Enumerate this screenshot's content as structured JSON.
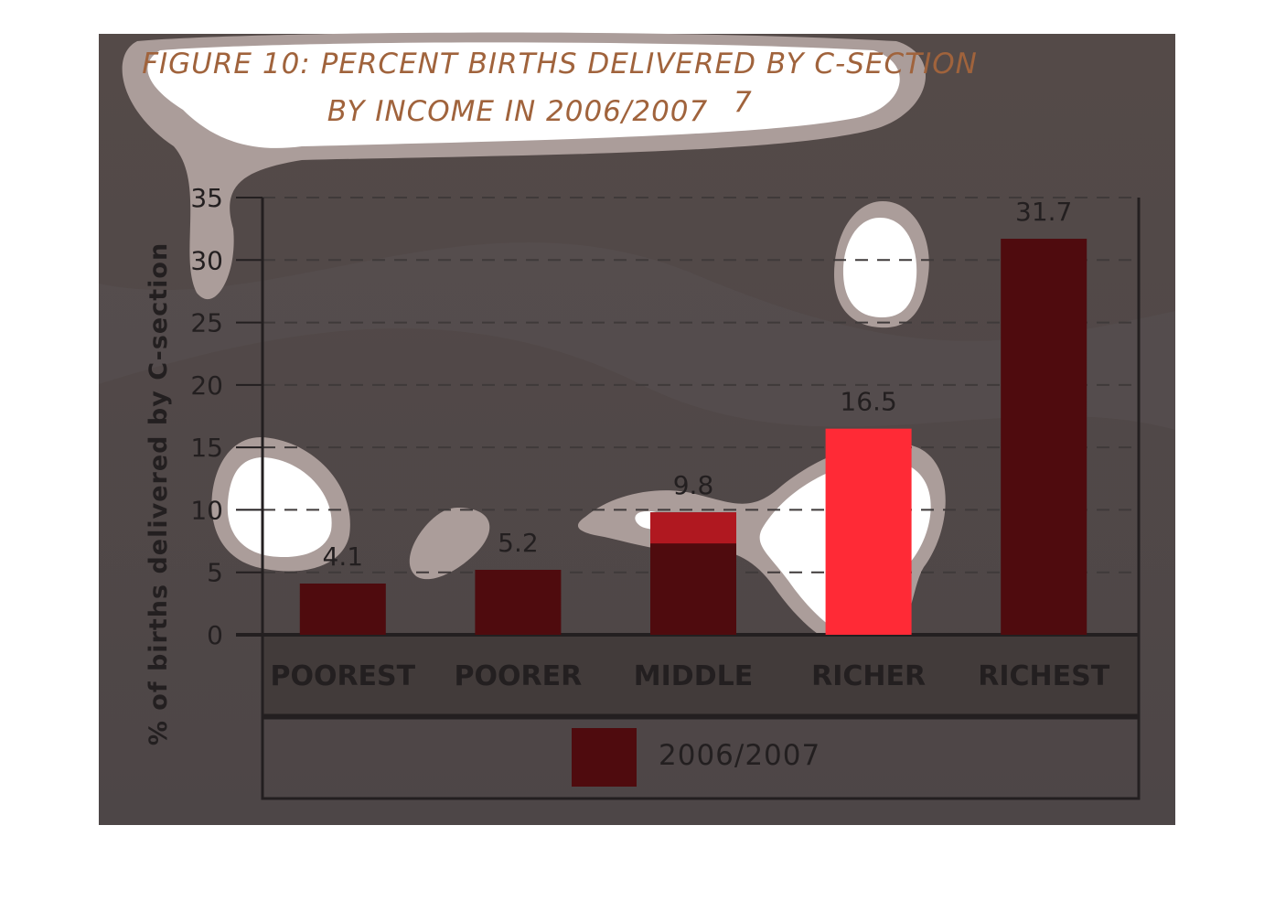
{
  "title": {
    "line1": "FIGURE 10: PERCENT BIRTHS DELIVERED BY C-SECTION",
    "line2": "BY INCOME IN 2006/2007",
    "footnote": "7"
  },
  "colors": {
    "background": "#524948",
    "bar": "#4f0b0e",
    "title": "#a0633c",
    "text": "#231f20",
    "grid": "#3f3a3a",
    "highlight_bar": "#ff2a36"
  },
  "chart_data": {
    "type": "bar",
    "title": "FIGURE 10: PERCENT BIRTHS DELIVERED BY C-SECTION BY INCOME IN 2006/2007",
    "xlabel": "",
    "ylabel": "% of births delivered by C-section",
    "categories": [
      "POOREST",
      "POORER",
      "MIDDLE",
      "RICHER",
      "RICHEST"
    ],
    "series": [
      {
        "name": "2006/2007",
        "values": [
          4.1,
          5.2,
          9.8,
          16.5,
          31.7
        ]
      }
    ],
    "data_labels": [
      "4.1",
      "5.2",
      "9.8",
      "16.5",
      "31.7"
    ],
    "ylim": [
      0,
      35
    ],
    "yticks": [
      "0",
      "5",
      "10",
      "15",
      "20",
      "25",
      "30",
      "35"
    ],
    "grid": "horizontal dashed",
    "legend": "bottom"
  }
}
